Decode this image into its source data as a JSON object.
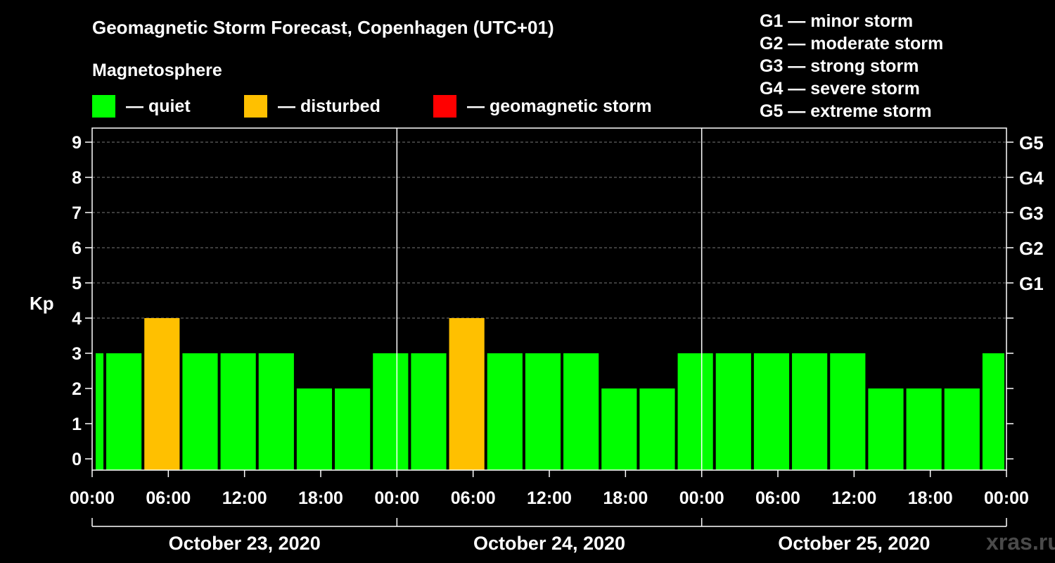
{
  "title": "Geomagnetic Storm Forecast, Copenhagen (UTC+01)",
  "legend": {
    "heading": "Magnetosphere",
    "items": [
      {
        "label": "— quiet",
        "color": "#00ff00"
      },
      {
        "label": "— disturbed",
        "color": "#ffc000"
      },
      {
        "label": "— geomagnetic storm",
        "color": "#ff0000"
      }
    ]
  },
  "storm_scale": [
    "G1 — minor storm",
    "G2 — moderate storm",
    "G3 — strong storm",
    "G4 — severe storm",
    "G5 — extreme storm"
  ],
  "watermark": "xras.ru",
  "chart_data": {
    "type": "bar",
    "ylabel": "Kp",
    "ylim": [
      0,
      9
    ],
    "yticks": [
      "0",
      "1",
      "2",
      "3",
      "4",
      "5",
      "6",
      "7",
      "8",
      "9"
    ],
    "right_ticks": [
      {
        "y": 5,
        "label": "G1"
      },
      {
        "y": 6,
        "label": "G2"
      },
      {
        "y": 7,
        "label": "G3"
      },
      {
        "y": 8,
        "label": "G4"
      },
      {
        "y": 9,
        "label": "G5"
      }
    ],
    "x_range_hours": [
      0,
      72
    ],
    "xticks": [
      "00:00",
      "06:00",
      "12:00",
      "18:00",
      "00:00",
      "06:00",
      "12:00",
      "18:00",
      "00:00",
      "06:00",
      "12:00",
      "18:00",
      "00:00"
    ],
    "days": [
      "October 23, 2020",
      "October 24, 2020",
      "October 25, 2020"
    ],
    "grid": "horizontal dashed",
    "colors": {
      "quiet": "#00ff00",
      "disturbed": "#ffc000",
      "storm": "#ff0000"
    },
    "bars": [
      {
        "start": 0,
        "end": 1,
        "kp": 3,
        "level": "quiet"
      },
      {
        "start": 1,
        "end": 4,
        "kp": 3,
        "level": "quiet"
      },
      {
        "start": 4,
        "end": 7,
        "kp": 4,
        "level": "disturbed"
      },
      {
        "start": 7,
        "end": 10,
        "kp": 3,
        "level": "quiet"
      },
      {
        "start": 10,
        "end": 13,
        "kp": 3,
        "level": "quiet"
      },
      {
        "start": 13,
        "end": 16,
        "kp": 3,
        "level": "quiet"
      },
      {
        "start": 16,
        "end": 19,
        "kp": 2,
        "level": "quiet"
      },
      {
        "start": 19,
        "end": 22,
        "kp": 2,
        "level": "quiet"
      },
      {
        "start": 22,
        "end": 25,
        "kp": 3,
        "level": "quiet"
      },
      {
        "start": 25,
        "end": 28,
        "kp": 3,
        "level": "quiet"
      },
      {
        "start": 28,
        "end": 31,
        "kp": 4,
        "level": "disturbed"
      },
      {
        "start": 31,
        "end": 34,
        "kp": 3,
        "level": "quiet"
      },
      {
        "start": 34,
        "end": 37,
        "kp": 3,
        "level": "quiet"
      },
      {
        "start": 37,
        "end": 40,
        "kp": 3,
        "level": "quiet"
      },
      {
        "start": 40,
        "end": 43,
        "kp": 2,
        "level": "quiet"
      },
      {
        "start": 43,
        "end": 46,
        "kp": 2,
        "level": "quiet"
      },
      {
        "start": 46,
        "end": 49,
        "kp": 3,
        "level": "quiet"
      },
      {
        "start": 49,
        "end": 52,
        "kp": 3,
        "level": "quiet"
      },
      {
        "start": 52,
        "end": 55,
        "kp": 3,
        "level": "quiet"
      },
      {
        "start": 55,
        "end": 58,
        "kp": 3,
        "level": "quiet"
      },
      {
        "start": 58,
        "end": 61,
        "kp": 3,
        "level": "quiet"
      },
      {
        "start": 61,
        "end": 64,
        "kp": 2,
        "level": "quiet"
      },
      {
        "start": 64,
        "end": 67,
        "kp": 2,
        "level": "quiet"
      },
      {
        "start": 67,
        "end": 70,
        "kp": 2,
        "level": "quiet"
      },
      {
        "start": 70,
        "end": 72,
        "kp": 3,
        "level": "quiet"
      }
    ]
  }
}
